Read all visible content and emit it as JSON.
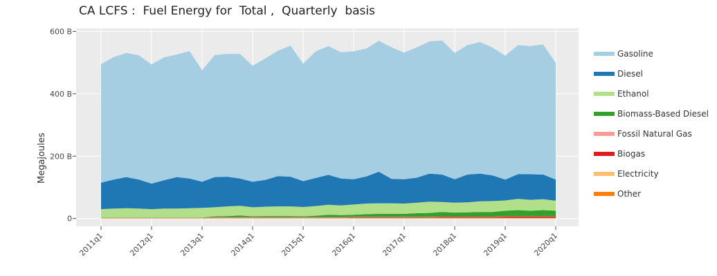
{
  "chart_data": {
    "type": "area",
    "title": "CA LCFS :  Fuel Energy for  Total ,  Quarterly  basis",
    "xlabel": "",
    "ylabel": "Megajoules",
    "stacked": true,
    "ylim": [
      -25,
      610
    ],
    "y_ticks": [
      0,
      200,
      400,
      600
    ],
    "y_tick_labels": [
      "0",
      "200 B",
      "400 B",
      "600 B"
    ],
    "x_tick_labels": [
      "2011q1",
      "2012q1",
      "2013q1",
      "2014q1",
      "2015q1",
      "2016q1",
      "2017q1",
      "2018q1",
      "2019q1",
      "2020q1"
    ],
    "grid": true,
    "legend_position": "right",
    "x": [
      "2011q1",
      "2011q2",
      "2011q3",
      "2011q4",
      "2012q1",
      "2012q2",
      "2012q3",
      "2012q4",
      "2013q1",
      "2013q2",
      "2013q3",
      "2013q4",
      "2014q1",
      "2014q2",
      "2014q3",
      "2014q4",
      "2015q1",
      "2015q2",
      "2015q3",
      "2015q4",
      "2016q1",
      "2016q2",
      "2016q3",
      "2016q4",
      "2017q1",
      "2017q2",
      "2017q3",
      "2017q4",
      "2018q1",
      "2018q2",
      "2018q3",
      "2018q4",
      "2019q1",
      "2019q2",
      "2019q3",
      "2019q4",
      "2020q1"
    ],
    "series": [
      {
        "name": "Other",
        "color": "#ff7f0e",
        "values": [
          1,
          1,
          1,
          1,
          1,
          1,
          1,
          1,
          1,
          1,
          1,
          1,
          1,
          1,
          1,
          1,
          1,
          1,
          1,
          1,
          1,
          1,
          1,
          1,
          1,
          1,
          1,
          1,
          1,
          1,
          1,
          1,
          1,
          1,
          1,
          1,
          1
        ]
      },
      {
        "name": "Electricity",
        "color": "#fdbf6f",
        "values": [
          0,
          0,
          0,
          0,
          0,
          0,
          0,
          0,
          0,
          1,
          1,
          1,
          1,
          1,
          1,
          1,
          1,
          1,
          1,
          1,
          1,
          1,
          1,
          1,
          1,
          1,
          1,
          1,
          1,
          1,
          1,
          1,
          1,
          1,
          1,
          1,
          1
        ]
      },
      {
        "name": "Biogas",
        "color": "#e31a1c",
        "values": [
          0,
          0,
          0,
          0,
          0,
          0,
          0,
          0,
          0,
          1,
          1,
          1,
          1,
          1,
          1,
          1,
          1,
          1,
          1,
          1,
          2,
          2,
          2,
          2,
          2,
          2,
          2,
          3,
          3,
          3,
          3,
          3,
          4,
          4,
          4,
          4,
          4
        ]
      },
      {
        "name": "Fossil Natural Gas",
        "color": "#fb9a99",
        "values": [
          1,
          1,
          1,
          1,
          1,
          1,
          1,
          1,
          1,
          1,
          1,
          1,
          1,
          1,
          1,
          1,
          1,
          1,
          1,
          1,
          1,
          1,
          1,
          1,
          1,
          1,
          1,
          1,
          1,
          1,
          1,
          1,
          1,
          1,
          1,
          1,
          1
        ]
      },
      {
        "name": "Biomass-Based Diesel",
        "color": "#33a02c",
        "values": [
          1,
          1,
          1,
          1,
          1,
          1,
          1,
          1,
          1,
          3,
          4,
          6,
          3,
          4,
          4,
          4,
          3,
          5,
          8,
          7,
          7,
          9,
          10,
          10,
          10,
          12,
          13,
          15,
          13,
          14,
          15,
          15,
          18,
          20,
          18,
          20,
          18
        ]
      },
      {
        "name": "Ethanol",
        "color": "#b2df8a",
        "values": [
          27,
          29,
          30,
          29,
          27,
          29,
          29,
          30,
          31,
          29,
          31,
          31,
          29,
          30,
          31,
          31,
          30,
          31,
          32,
          31,
          33,
          34,
          34,
          34,
          33,
          34,
          36,
          32,
          32,
          32,
          34,
          35,
          33,
          36,
          35,
          35,
          32
        ]
      },
      {
        "name": "Diesel",
        "color": "#1f78b4",
        "values": [
          85,
          93,
          100,
          93,
          82,
          91,
          101,
          95,
          84,
          97,
          95,
          87,
          82,
          86,
          97,
          95,
          83,
          90,
          96,
          86,
          81,
          87,
          101,
          78,
          78,
          80,
          90,
          88,
          75,
          89,
          89,
          82,
          67,
          79,
          82,
          79,
          68
        ]
      },
      {
        "name": "Gasoline",
        "color": "#a6cee3",
        "values": [
          380,
          393,
          398,
          398,
          382,
          394,
          393,
          409,
          358,
          391,
          394,
          400,
          372,
          389,
          402,
          420,
          377,
          406,
          413,
          405,
          410,
          410,
          420,
          422,
          406,
          418,
          424,
          430,
          405,
          415,
          422,
          410,
          397,
          414,
          411,
          417,
          374
        ]
      }
    ]
  }
}
